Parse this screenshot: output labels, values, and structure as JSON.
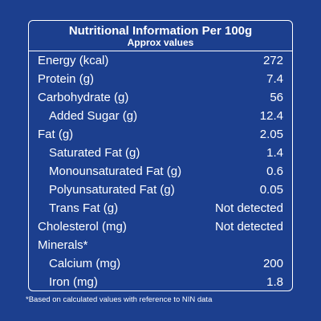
{
  "panel": {
    "title": "Nutritional Information Per 100g",
    "subtitle": "Approx values",
    "rows": [
      {
        "label": "Energy (kcal)",
        "value": "272"
      },
      {
        "label": "Protein (g)",
        "value": "7.4"
      },
      {
        "label": "Carbohydrate (g)",
        "value": "56"
      },
      {
        "label": "Added Sugar (g)",
        "value": "12.4"
      },
      {
        "label": "Fat (g)",
        "value": "2.05"
      },
      {
        "label": "Saturated Fat (g)",
        "value": "1.4"
      },
      {
        "label": "Monounsaturated Fat (g)",
        "value": "0.6"
      },
      {
        "label": "Polyunsaturated Fat (g)",
        "value": "0.05"
      },
      {
        "label": "Trans Fat (g)",
        "value": "Not detected"
      },
      {
        "label": "Cholesterol (mg)",
        "value": "Not detected"
      },
      {
        "label": "Minerals*",
        "value": ""
      },
      {
        "label": "Calcium (mg)",
        "value": "200"
      },
      {
        "label": "Iron (mg)",
        "value": "1.8"
      }
    ]
  },
  "footnote": "*Based on calculated values with reference to NIN data",
  "colors": {
    "background": "#1c3f8e",
    "text": "#ffffff"
  }
}
